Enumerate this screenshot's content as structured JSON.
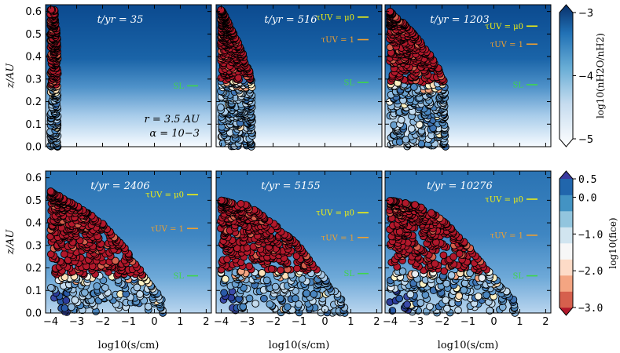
{
  "chart_data": {
    "type": "scatter",
    "figure": "6-panel grid of grain-size vs height scatter over gas-phase water background",
    "xlabel": "log10(s/cm)",
    "ylabel": "z/AU",
    "xlim": [
      -4.2,
      2.2
    ],
    "ylim": [
      0.0,
      0.63
    ],
    "xticks": [
      "−4",
      "−3",
      "−2",
      "−1",
      "0",
      "1",
      "2"
    ],
    "yticks": [
      "0.0",
      "0.1",
      "0.2",
      "0.3",
      "0.4",
      "0.5",
      "0.6"
    ],
    "params_text": [
      "r = 3.5 AU",
      "α = 10−3"
    ],
    "line_labels": {
      "mu0": "τUV = μ0",
      "tau1": "τUV = 1",
      "sl": "SL"
    },
    "line_colors": {
      "mu0": "#f4f20e",
      "tau1": "#f0a030",
      "sl": "#3fd64a"
    },
    "panels": [
      {
        "time_label": "t/yr = 35",
        "t": 35,
        "lines": {
          "mu0": null,
          "tau1": null,
          "sl": 0.27
        },
        "extent": [
          [
            -4.0,
            0.61
          ],
          [
            -3.85,
            0.61
          ],
          [
            -3.72,
            0.45
          ],
          [
            -3.72,
            0.0
          ]
        ],
        "ice_boundary": 0.27
      },
      {
        "time_label": "t/yr = 516",
        "t": 516,
        "lines": {
          "mu0": 0.575,
          "tau1": 0.475,
          "sl": 0.285
        },
        "extent": [
          [
            -4.0,
            0.61
          ],
          [
            -3.8,
            0.57
          ],
          [
            -3.5,
            0.5
          ],
          [
            -3.1,
            0.4
          ],
          [
            -2.8,
            0.3
          ],
          [
            -2.8,
            0.0
          ]
        ],
        "ice_boundary": 0.29
      },
      {
        "time_label": "t/yr = 1203",
        "t": 1203,
        "lines": {
          "mu0": 0.535,
          "tau1": 0.455,
          "sl": 0.275
        },
        "extent": [
          [
            -4.0,
            0.6
          ],
          [
            -3.5,
            0.55
          ],
          [
            -3.0,
            0.49
          ],
          [
            -2.4,
            0.4
          ],
          [
            -1.9,
            0.3
          ],
          [
            -1.85,
            0.0
          ]
        ],
        "ice_boundary": 0.28
      },
      {
        "time_label": "t/yr = 2406",
        "t": 2406,
        "lines": {
          "mu0": 0.525,
          "tau1": 0.375,
          "sl": 0.165
        },
        "extent": [
          [
            -4.0,
            0.54
          ],
          [
            -3.0,
            0.48
          ],
          [
            -2.0,
            0.4
          ],
          [
            -1.2,
            0.3
          ],
          [
            -0.6,
            0.2
          ],
          [
            -0.1,
            0.12
          ],
          [
            0.3,
            0.06
          ],
          [
            0.35,
            0.0
          ]
        ],
        "ice_boundary": 0.16
      },
      {
        "time_label": "t/yr = 5155",
        "t": 5155,
        "lines": {
          "mu0": 0.445,
          "tau1": 0.335,
          "sl": 0.175
        },
        "extent": [
          [
            -4.0,
            0.5
          ],
          [
            -3.0,
            0.48
          ],
          [
            -2.0,
            0.4
          ],
          [
            -1.0,
            0.3
          ],
          [
            -0.3,
            0.2
          ],
          [
            0.2,
            0.12
          ],
          [
            0.7,
            0.06
          ],
          [
            0.8,
            0.0
          ]
        ],
        "ice_boundary": 0.18
      },
      {
        "time_label": "t/yr = 10276",
        "t": 10276,
        "lines": {
          "mu0": 0.505,
          "tau1": 0.345,
          "sl": 0.165
        },
        "extent": [
          [
            -4.0,
            0.5
          ],
          [
            -3.0,
            0.48
          ],
          [
            -2.0,
            0.42
          ],
          [
            -1.0,
            0.3
          ],
          [
            -0.3,
            0.2
          ],
          [
            0.3,
            0.12
          ],
          [
            0.8,
            0.06
          ],
          [
            0.85,
            0.0
          ]
        ],
        "ice_boundary": 0.18
      }
    ],
    "colorbar_gas": {
      "label": "log10(nH2O/nH2)",
      "range": [
        -5,
        -3
      ],
      "ticks": [
        "−3",
        "−4",
        "−5"
      ],
      "colors": [
        "#ffffff",
        "#c6dcef",
        "#6aaed6",
        "#2171b5",
        "#08306b"
      ]
    },
    "colorbar_ice": {
      "label": "log10(fice)",
      "range": [
        -3.0,
        0.5
      ],
      "ticks": [
        "0.5",
        "0.0",
        "−1.0",
        "−2.0",
        "−3.0"
      ],
      "colors": [
        "#b2182b",
        "#d6604d",
        "#f4a582",
        "#fddbc7",
        "#f7f7f7",
        "#d1e5f0",
        "#92c5de",
        "#4393c3",
        "#2166ac",
        "#3a3a9f"
      ]
    }
  }
}
